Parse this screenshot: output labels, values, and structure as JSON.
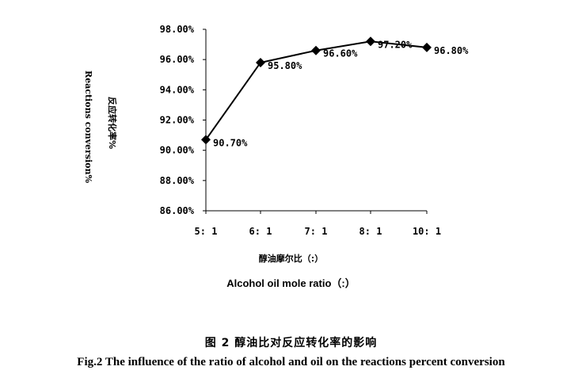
{
  "chart_data": {
    "type": "line",
    "categories": [
      "5: 1",
      "6: 1",
      "7: 1",
      "8: 1",
      "10: 1"
    ],
    "values": [
      90.7,
      95.8,
      96.6,
      97.2,
      96.8
    ],
    "data_labels": [
      "90.70%",
      "95.80%",
      "96.60%",
      "97.20%",
      "96.80%"
    ],
    "ylim": [
      86,
      98
    ],
    "yticks": [
      86,
      88,
      90,
      92,
      94,
      96,
      98
    ],
    "ytick_labels": [
      "86.00%",
      "88.00%",
      "90.00%",
      "92.00%",
      "94.00%",
      "96.00%",
      "98.00%"
    ],
    "ylabel_cn": "反应转化率%",
    "ylabel_en": "Reactions conversion%",
    "xlabel_cn": "醇油摩尔比（:）",
    "xlabel_en": "Alcohol oil mole ratio（:）",
    "grid": false,
    "marker": "diamond",
    "line_color": "#000000"
  },
  "caption": {
    "cn": "图 2   醇油比对反应转化率的影响",
    "en": "Fig.2   The influence of the ratio of alcohol and oil on the reactions percent conversion"
  }
}
